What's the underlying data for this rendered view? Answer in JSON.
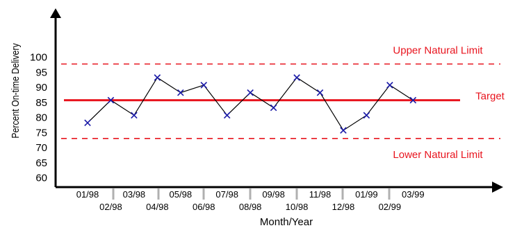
{
  "chart_data": {
    "type": "line",
    "title": "",
    "xlabel": "Month/Year",
    "ylabel": "Percent On-time Delivery",
    "categories": [
      "01/98",
      "02/98",
      "03/98",
      "04/98",
      "05/98",
      "06/98",
      "07/98",
      "08/98",
      "09/98",
      "10/98",
      "11/98",
      "12/98",
      "01/99",
      "02/99",
      "03/99"
    ],
    "series": [
      {
        "values": [
          78,
          85.5,
          80.5,
          93,
          88,
          90.5,
          80.5,
          88,
          83,
          93,
          88,
          75.5,
          80.5,
          90.5,
          85.5
        ]
      }
    ],
    "ylim": [
      60,
      100
    ],
    "yticks": [
      60,
      65,
      70,
      75,
      80,
      85,
      90,
      95,
      100
    ],
    "reference_lines": [
      {
        "label": "Upper Natural Limit",
        "value": 97.5,
        "style": "dashed"
      },
      {
        "label": "Target",
        "value": 85.5,
        "style": "solid"
      },
      {
        "label": "Lower Natural Limit",
        "value": 72.8,
        "style": "dashed"
      }
    ],
    "grid": false,
    "colors": {
      "reference": "#e8141e",
      "series": "#000000",
      "marker": "#1a1aa8"
    }
  }
}
